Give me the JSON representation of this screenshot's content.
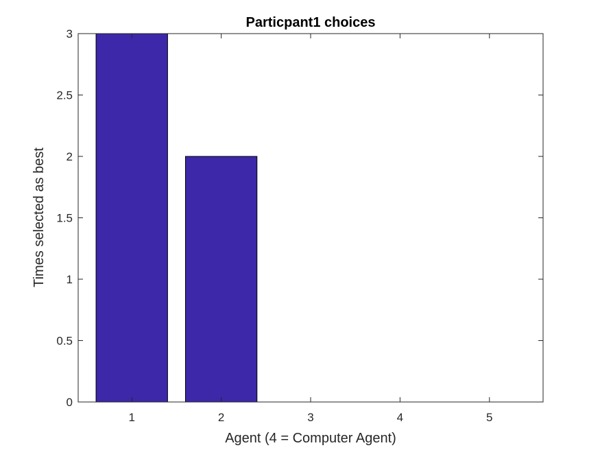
{
  "chart_data": {
    "type": "bar",
    "title": "Particpant1 choices",
    "xlabel": "Agent (4 = Computer Agent)",
    "ylabel": "Times selected as best",
    "categories": [
      "1",
      "2",
      "3",
      "4",
      "5"
    ],
    "values": [
      3,
      2,
      0,
      0,
      0
    ],
    "xlim": [
      0.4,
      5.6
    ],
    "ylim": [
      0,
      3
    ],
    "yticks": [
      "0",
      "0.5",
      "1",
      "1.5",
      "2",
      "2.5",
      "3"
    ],
    "bar_color": "#3c28a8",
    "bar_edge_color": "#000000",
    "grid": false,
    "legend": "none"
  }
}
